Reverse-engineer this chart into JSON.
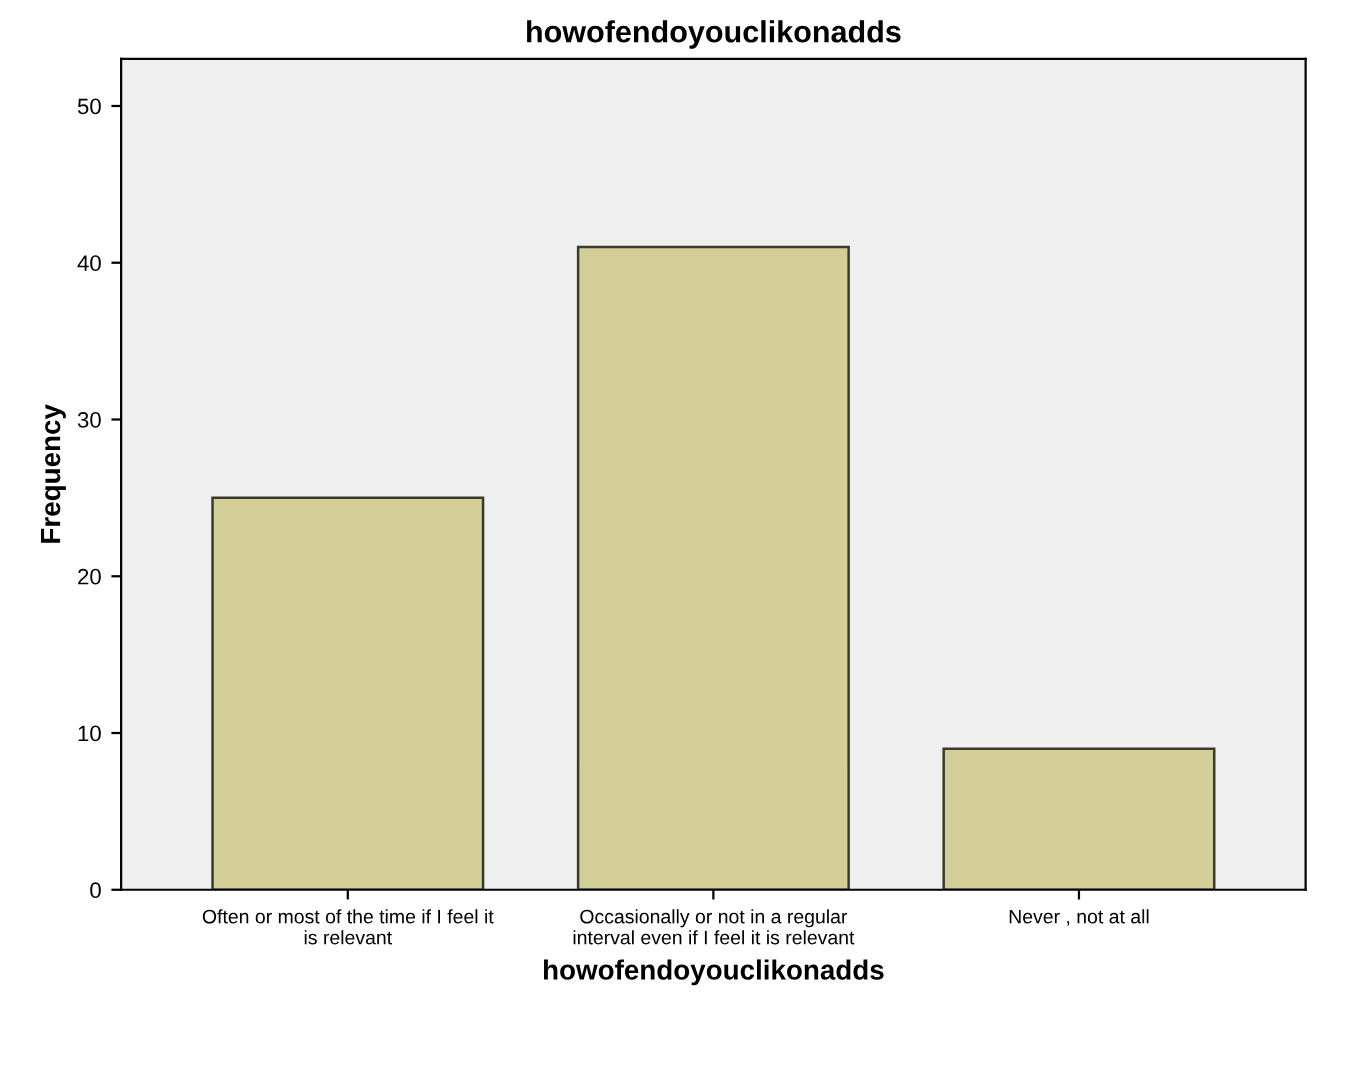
{
  "chart_data": {
    "type": "bar",
    "title": "howofendoyouclikonadds",
    "xlabel": "howofendoyouclikonadds",
    "ylabel": "Frequency",
    "categories": [
      "Often or most of the time if I feel it\nis relevant",
      "Occasionally or not in a regular\ninterval even if I feel it is relevant",
      "Never , not at all"
    ],
    "values": [
      25,
      41,
      9
    ],
    "color": "#d3ce97",
    "ylim": [
      0,
      53
    ],
    "yticks": [
      0,
      10,
      20,
      30,
      40,
      50
    ],
    "grid": false
  }
}
